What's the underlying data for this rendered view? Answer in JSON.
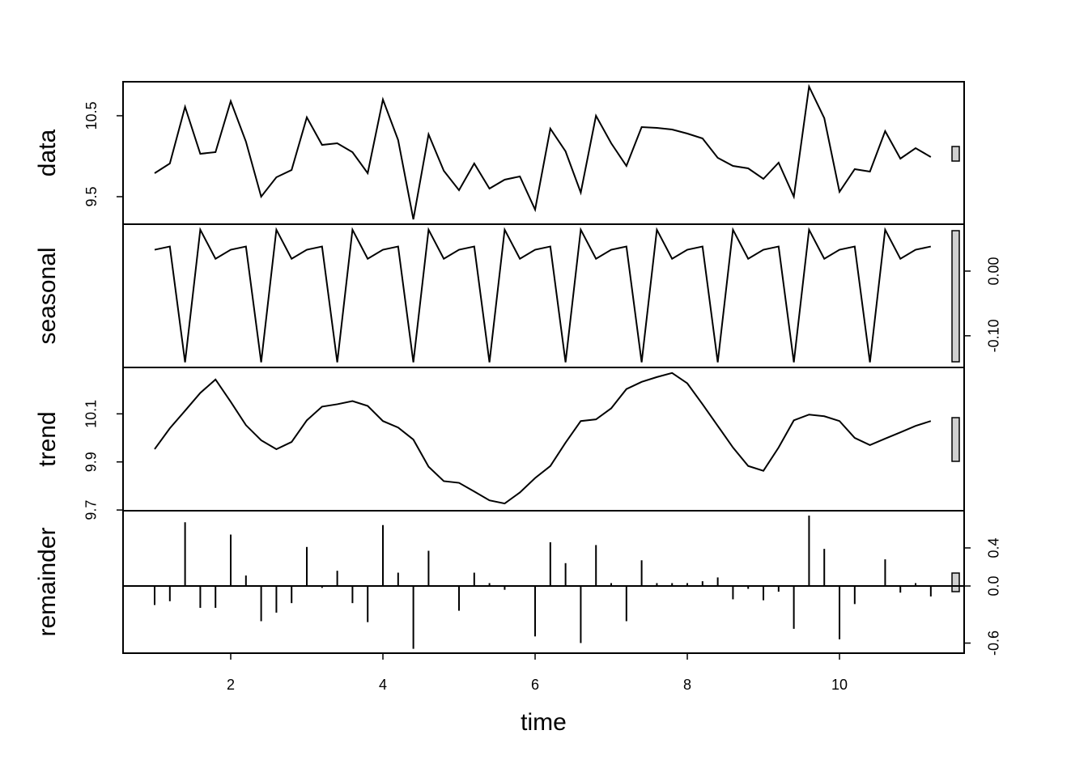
{
  "chart_data": [
    {
      "type": "line",
      "ylabel": "data",
      "yaxis_side": "left",
      "color": "#000000",
      "x": [
        1,
        1.2,
        1.4,
        1.6,
        1.8,
        2,
        2.2,
        2.4,
        2.6,
        2.8,
        3,
        3.2,
        3.4,
        3.6,
        3.8,
        4,
        4.2,
        4.4,
        4.6,
        4.8,
        5,
        5.2,
        5.4,
        5.6,
        5.8,
        6,
        6.2,
        6.4,
        6.6,
        6.8,
        7,
        7.2,
        7.4,
        7.6,
        7.8,
        8,
        8.2,
        8.4,
        8.6,
        8.8,
        9,
        9.2,
        9.4,
        9.6,
        9.8,
        10,
        10.2,
        10.4,
        10.6,
        10.8,
        11,
        11.2
      ],
      "values": [
        9.79,
        9.91,
        10.61,
        10.03,
        10.05,
        10.68,
        10.18,
        9.5,
        9.74,
        9.83,
        10.48,
        10.14,
        10.16,
        10.05,
        9.79,
        10.7,
        10.2,
        9.22,
        10.27,
        9.82,
        9.58,
        9.91,
        9.6,
        9.71,
        9.75,
        9.34,
        10.34,
        10.06,
        9.55,
        10.5,
        10.16,
        9.88,
        10.36,
        10.35,
        10.33,
        10.28,
        10.22,
        9.98,
        9.88,
        9.85,
        9.72,
        9.92,
        9.5,
        10.86,
        10.47,
        9.56,
        9.84,
        9.81,
        10.31,
        9.97,
        10.1,
        9.99
      ],
      "xlim": [
        0.585,
        11.638
      ],
      "ylim": [
        9.16,
        10.92
      ],
      "yticks": [
        9.5,
        10.5
      ]
    },
    {
      "type": "line",
      "ylabel": "seasonal",
      "yaxis_side": "right",
      "color": "#000000",
      "x": [
        1,
        1.2,
        1.4,
        1.6,
        1.8,
        2,
        2.2,
        2.4,
        2.6,
        2.8,
        3,
        3.2,
        3.4,
        3.6,
        3.8,
        4,
        4.2,
        4.4,
        4.6,
        4.8,
        5,
        5.2,
        5.4,
        5.6,
        5.8,
        6,
        6.2,
        6.4,
        6.6,
        6.8,
        7,
        7.2,
        7.4,
        7.6,
        7.8,
        8,
        8.2,
        8.4,
        8.6,
        8.8,
        9,
        9.2,
        9.4,
        9.6,
        9.8,
        10,
        10.2,
        10.4,
        10.6,
        10.8,
        11,
        11.2
      ],
      "values": [
        0.033,
        0.038,
        -0.141,
        0.064,
        0.019,
        0.033,
        0.038,
        -0.141,
        0.064,
        0.019,
        0.033,
        0.038,
        -0.141,
        0.064,
        0.019,
        0.033,
        0.038,
        -0.141,
        0.064,
        0.019,
        0.033,
        0.038,
        -0.141,
        0.064,
        0.019,
        0.033,
        0.038,
        -0.141,
        0.064,
        0.019,
        0.033,
        0.038,
        -0.141,
        0.064,
        0.019,
        0.033,
        0.038,
        -0.141,
        0.064,
        0.019,
        0.033,
        0.038,
        -0.141,
        0.064,
        0.019,
        0.033,
        0.038,
        -0.141,
        0.064,
        0.019,
        0.033,
        0.038
      ],
      "xlim": [
        0.585,
        11.638
      ],
      "ylim": [
        -0.149,
        0.0725
      ],
      "yticks": [
        {
          "value": -0.1,
          "label": "-0.10"
        },
        {
          "value": 0,
          "label": "0.00"
        }
      ]
    },
    {
      "type": "line",
      "ylabel": "trend",
      "yaxis_side": "left",
      "color": "#000000",
      "x": [
        1,
        1.2,
        1.4,
        1.6,
        1.8,
        2,
        2.2,
        2.4,
        2.6,
        2.8,
        3,
        3.2,
        3.4,
        3.6,
        3.8,
        4,
        4.2,
        4.4,
        4.6,
        4.8,
        5,
        5.2,
        5.4,
        5.6,
        5.8,
        6,
        6.2,
        6.4,
        6.6,
        6.8,
        7,
        7.2,
        7.4,
        7.6,
        7.8,
        8,
        8.2,
        8.4,
        8.6,
        8.8,
        9,
        9.2,
        9.4,
        9.6,
        9.8,
        10,
        10.2,
        10.4,
        10.6,
        10.8,
        11,
        11.2
      ],
      "values": [
        9.953,
        10.04,
        10.113,
        10.187,
        10.243,
        10.15,
        10.053,
        9.99,
        9.953,
        9.983,
        10.073,
        10.13,
        10.14,
        10.153,
        10.133,
        10.07,
        10.043,
        9.993,
        9.88,
        9.82,
        9.813,
        9.777,
        9.74,
        9.727,
        9.773,
        9.833,
        9.883,
        9.98,
        10.07,
        10.077,
        10.123,
        10.203,
        10.233,
        10.253,
        10.27,
        10.227,
        10.14,
        10.05,
        9.96,
        9.883,
        9.863,
        9.96,
        10.073,
        10.097,
        10.09,
        10.07,
        10.0,
        9.97,
        9.997,
        10.023,
        10.05,
        10.07
      ],
      "xlim": [
        0.585,
        11.638
      ],
      "ylim": [
        9.697,
        10.293
      ],
      "yticks": [
        9.7,
        9.9,
        10.1
      ]
    },
    {
      "type": "bar",
      "ylabel": "remainder",
      "yaxis_side": "right",
      "color": "#000000",
      "xlabel": "time",
      "x": [
        1,
        1.2,
        1.4,
        1.6,
        1.8,
        2,
        2.2,
        2.4,
        2.6,
        2.8,
        3,
        3.2,
        3.4,
        3.6,
        3.8,
        4,
        4.2,
        4.4,
        4.6,
        4.8,
        5,
        5.2,
        5.4,
        5.6,
        5.8,
        6,
        6.2,
        6.4,
        6.6,
        6.8,
        7,
        7.2,
        7.4,
        7.6,
        7.8,
        8,
        8.2,
        8.4,
        8.6,
        8.8,
        9,
        9.2,
        9.4,
        9.6,
        9.8,
        10,
        10.2,
        10.4,
        10.6,
        10.8,
        11,
        11.2
      ],
      "values": [
        -0.2,
        -0.16,
        0.67,
        -0.23,
        -0.23,
        0.54,
        0.11,
        -0.37,
        -0.28,
        -0.18,
        0.41,
        -0.02,
        0.16,
        -0.18,
        -0.38,
        0.64,
        0.14,
        -0.66,
        0.37,
        0.0,
        -0.26,
        0.14,
        0.03,
        -0.04,
        0.0,
        -0.53,
        0.46,
        0.24,
        -0.6,
        0.43,
        0.03,
        -0.37,
        0.27,
        0.03,
        0.03,
        0.03,
        0.05,
        0.09,
        -0.14,
        -0.03,
        -0.15,
        -0.06,
        -0.45,
        0.74,
        0.39,
        -0.56,
        -0.19,
        0.0,
        0.28,
        -0.07,
        0.03,
        -0.11
      ],
      "xlim": [
        0.585,
        11.638
      ],
      "ylim": [
        -0.706,
        0.791
      ],
      "yticks": [
        -0.6,
        {
          "value": 0,
          "label": "0.0"
        },
        0.4
      ],
      "xticks": [
        2,
        4,
        6,
        8,
        10
      ]
    }
  ]
}
